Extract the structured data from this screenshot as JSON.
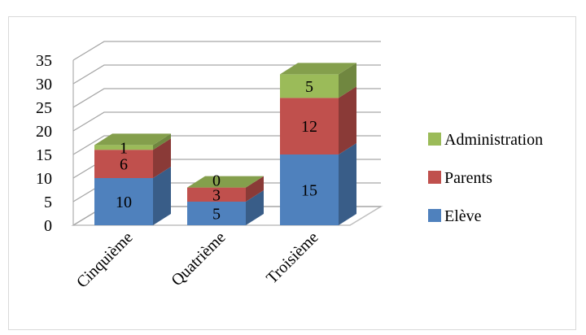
{
  "chart_data": {
    "type": "bar",
    "stacked": true,
    "three_d": true,
    "title": "",
    "xlabel": "",
    "ylabel": "",
    "categories": [
      "Cinquième",
      "Quatrième",
      "Troisième"
    ],
    "ylim": [
      0,
      35
    ],
    "yticks": [
      0,
      5,
      10,
      15,
      20,
      25,
      30,
      35
    ],
    "grid": true,
    "legend_position": "right",
    "series": [
      {
        "name": "Elève",
        "values": [
          10,
          5,
          15
        ],
        "color": "#4f81bd"
      },
      {
        "name": "Parents",
        "values": [
          6,
          3,
          12
        ],
        "color": "#c0504d"
      },
      {
        "name": "Administration",
        "values": [
          1,
          0,
          5
        ],
        "color": "#9bbb59"
      }
    ]
  }
}
